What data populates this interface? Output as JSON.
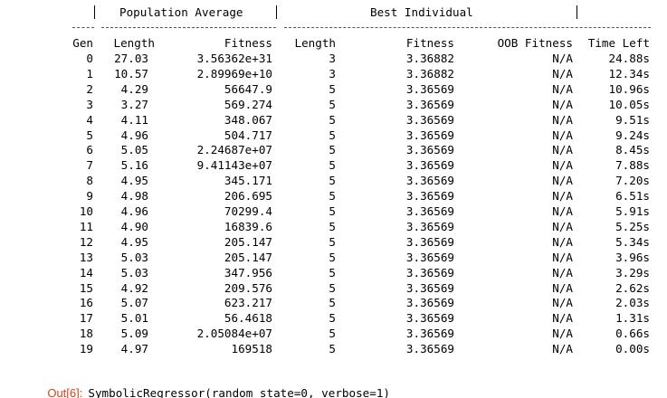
{
  "output": {
    "header_groups": {
      "population_average": "Population Average",
      "best_individual": "Best Individual"
    },
    "columns": {
      "gen": "Gen",
      "length": "Length",
      "fitness": "Fitness",
      "best_length": "Length",
      "best_fitness": "Fitness",
      "oob_fitness": "OOB Fitness",
      "time_left": "Time Left"
    },
    "rows": [
      {
        "gen": "0",
        "len": "27.03",
        "fit": "3.56362e+31",
        "blen": "3",
        "bfit": "3.36882",
        "oob": "N/A",
        "time": "24.88s"
      },
      {
        "gen": "1",
        "len": "10.57",
        "fit": "2.89969e+10",
        "blen": "3",
        "bfit": "3.36882",
        "oob": "N/A",
        "time": "12.34s"
      },
      {
        "gen": "2",
        "len": "4.29",
        "fit": "56647.9",
        "blen": "5",
        "bfit": "3.36569",
        "oob": "N/A",
        "time": "10.96s"
      },
      {
        "gen": "3",
        "len": "3.27",
        "fit": "569.274",
        "blen": "5",
        "bfit": "3.36569",
        "oob": "N/A",
        "time": "10.05s"
      },
      {
        "gen": "4",
        "len": "4.11",
        "fit": "348.067",
        "blen": "5",
        "bfit": "3.36569",
        "oob": "N/A",
        "time": "9.51s"
      },
      {
        "gen": "5",
        "len": "4.96",
        "fit": "504.717",
        "blen": "5",
        "bfit": "3.36569",
        "oob": "N/A",
        "time": "9.24s"
      },
      {
        "gen": "6",
        "len": "5.05",
        "fit": "2.24687e+07",
        "blen": "5",
        "bfit": "3.36569",
        "oob": "N/A",
        "time": "8.45s"
      },
      {
        "gen": "7",
        "len": "5.16",
        "fit": "9.41143e+07",
        "blen": "5",
        "bfit": "3.36569",
        "oob": "N/A",
        "time": "7.88s"
      },
      {
        "gen": "8",
        "len": "4.95",
        "fit": "345.171",
        "blen": "5",
        "bfit": "3.36569",
        "oob": "N/A",
        "time": "7.20s"
      },
      {
        "gen": "9",
        "len": "4.98",
        "fit": "206.695",
        "blen": "5",
        "bfit": "3.36569",
        "oob": "N/A",
        "time": "6.51s"
      },
      {
        "gen": "10",
        "len": "4.96",
        "fit": "70299.4",
        "blen": "5",
        "bfit": "3.36569",
        "oob": "N/A",
        "time": "5.91s"
      },
      {
        "gen": "11",
        "len": "4.90",
        "fit": "16839.6",
        "blen": "5",
        "bfit": "3.36569",
        "oob": "N/A",
        "time": "5.25s"
      },
      {
        "gen": "12",
        "len": "4.95",
        "fit": "205.147",
        "blen": "5",
        "bfit": "3.36569",
        "oob": "N/A",
        "time": "5.34s"
      },
      {
        "gen": "13",
        "len": "5.03",
        "fit": "205.147",
        "blen": "5",
        "bfit": "3.36569",
        "oob": "N/A",
        "time": "3.96s"
      },
      {
        "gen": "14",
        "len": "5.03",
        "fit": "347.956",
        "blen": "5",
        "bfit": "3.36569",
        "oob": "N/A",
        "time": "3.29s"
      },
      {
        "gen": "15",
        "len": "4.92",
        "fit": "209.576",
        "blen": "5",
        "bfit": "3.36569",
        "oob": "N/A",
        "time": "2.62s"
      },
      {
        "gen": "16",
        "len": "5.07",
        "fit": "623.217",
        "blen": "5",
        "bfit": "3.36569",
        "oob": "N/A",
        "time": "2.03s"
      },
      {
        "gen": "17",
        "len": "5.01",
        "fit": "56.4618",
        "blen": "5",
        "bfit": "3.36569",
        "oob": "N/A",
        "time": "1.31s"
      },
      {
        "gen": "18",
        "len": "5.09",
        "fit": "2.05084e+07",
        "blen": "5",
        "bfit": "3.36569",
        "oob": "N/A",
        "time": "0.66s"
      },
      {
        "gen": "19",
        "len": "4.97",
        "fit": "169518",
        "blen": "5",
        "bfit": "3.36569",
        "oob": "N/A",
        "time": "0.00s"
      }
    ],
    "result": {
      "prompt": "Out[6]:",
      "text": "SymbolicRegressor(random_state=0, verbose=1)"
    }
  }
}
